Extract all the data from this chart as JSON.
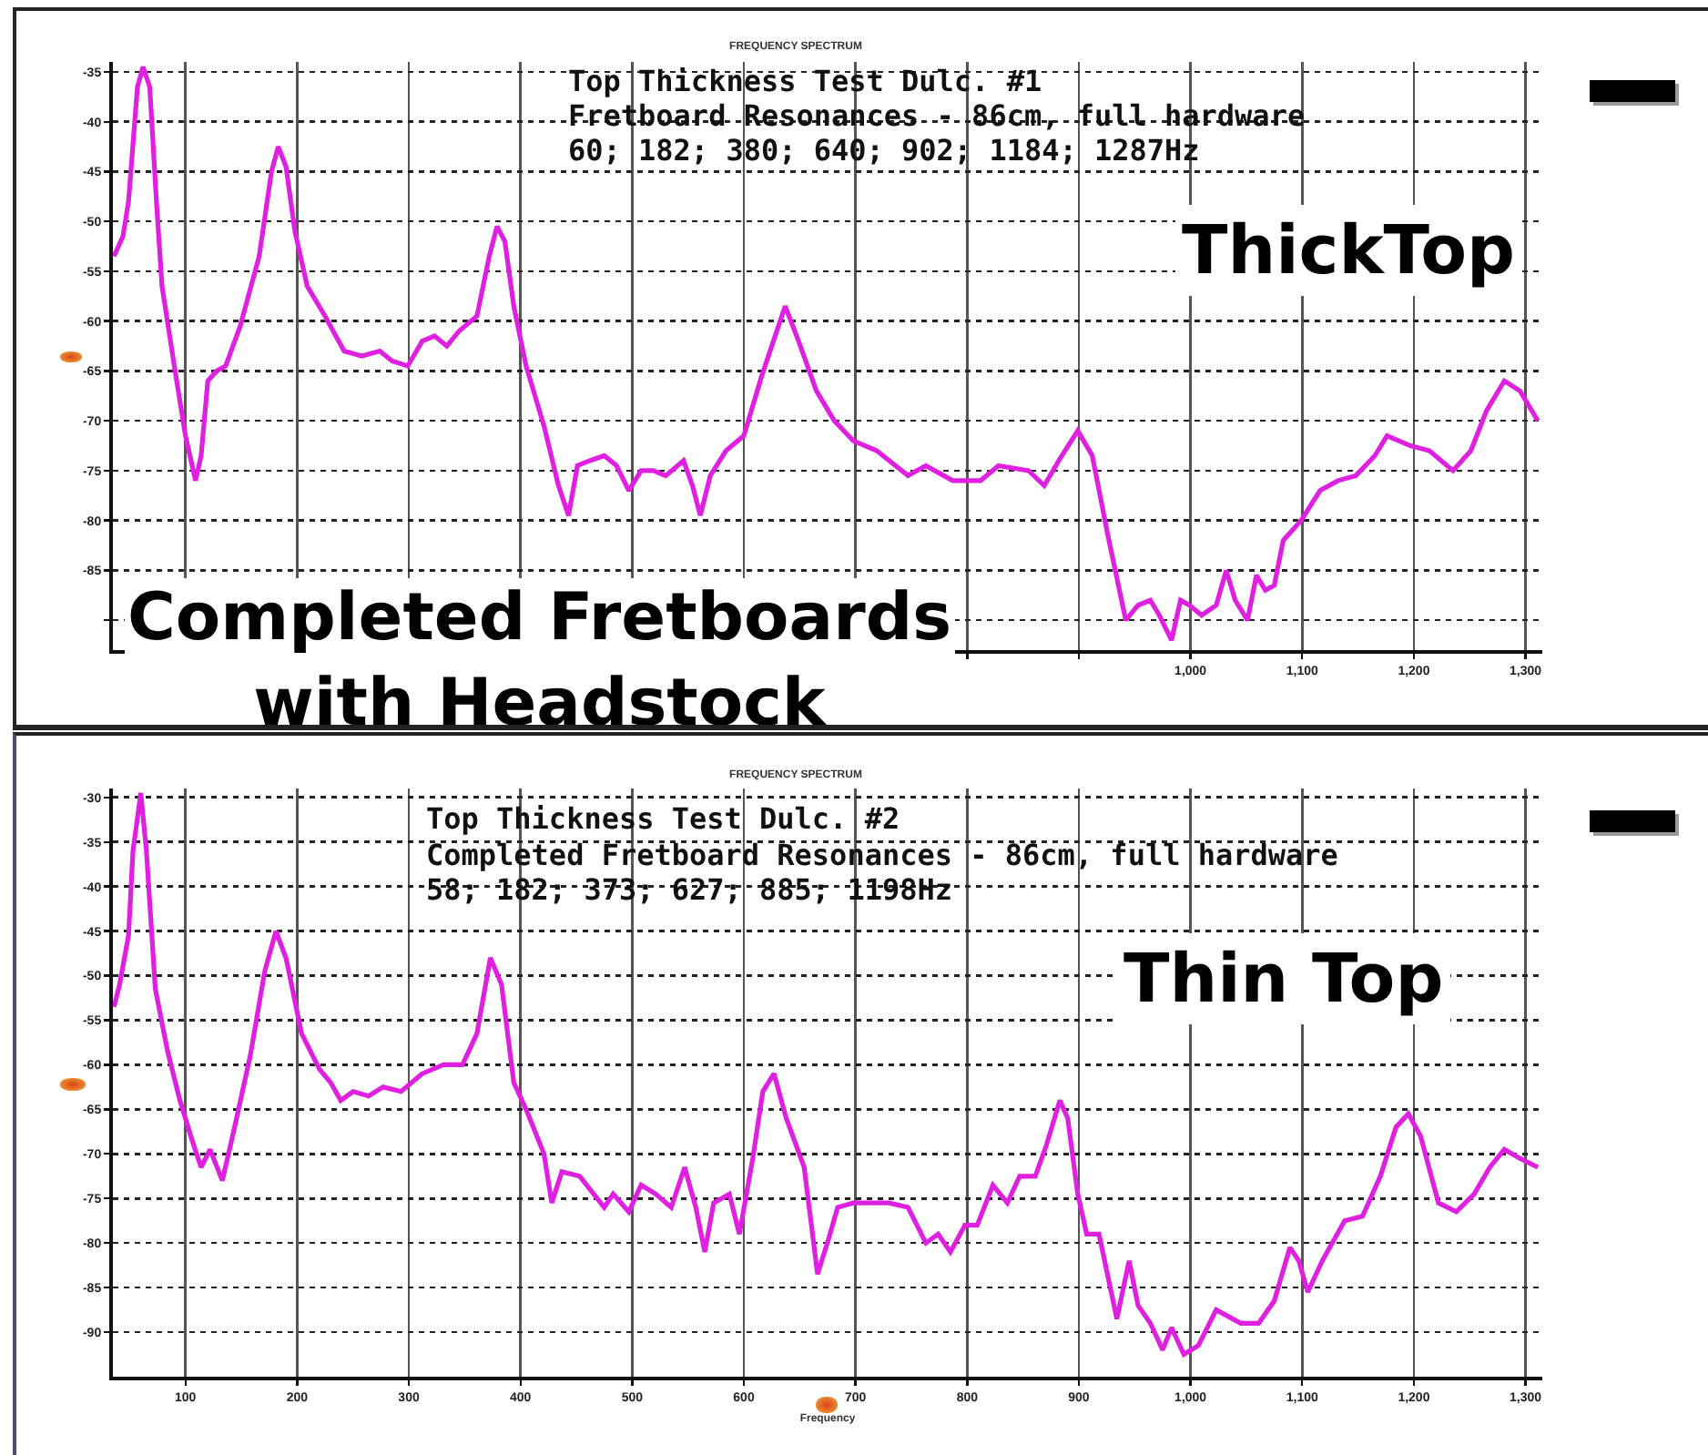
{
  "chart_data": [
    {
      "type": "line",
      "title": "FREQUENCY SPECTRUM",
      "x": [
        36,
        44,
        49,
        57,
        62,
        68,
        74,
        79,
        90,
        100,
        109,
        114,
        120,
        128,
        136,
        149,
        166,
        177,
        183,
        190,
        198,
        209,
        225,
        242,
        258,
        274,
        285,
        299,
        312,
        323,
        334,
        345,
        361,
        372,
        379,
        386,
        394,
        405,
        421,
        434,
        443,
        451,
        462,
        475,
        486,
        497,
        508,
        519,
        530,
        546,
        554,
        561,
        570,
        584,
        600,
        616,
        637,
        649,
        665,
        681,
        698,
        719,
        747,
        763,
        787,
        812,
        828,
        855,
        869,
        882,
        899,
        912,
        926,
        942,
        953,
        964,
        972,
        983,
        991,
        999,
        1010,
        1023,
        1032,
        1040,
        1051,
        1059,
        1067,
        1075,
        1083,
        1099,
        1116,
        1132,
        1148,
        1165,
        1176,
        1197,
        1214,
        1235,
        1251,
        1265,
        1281,
        1295,
        1311
      ],
      "series": [
        {
          "color": "#e020e0",
          "values": [
            -53.5,
            -51.5,
            -48,
            -36.5,
            -34.5,
            -36.5,
            -48,
            -56.5,
            -64.5,
            -71.5,
            -76,
            -73.5,
            -66,
            -65,
            -64.5,
            -60.5,
            -53.5,
            -45,
            -42.5,
            -44.5,
            -51,
            -56.5,
            -59.5,
            -63,
            -63.5,
            -63,
            -64,
            -64.5,
            -62,
            -61.5,
            -62.5,
            -61,
            -59.5,
            -53.5,
            -50.5,
            -52,
            -58.5,
            -64.5,
            -70.5,
            -76.5,
            -79.5,
            -74.5,
            -74,
            -73.5,
            -74.5,
            -77,
            -75,
            -75,
            -75.5,
            -74,
            -76.5,
            -79.5,
            -75.5,
            -73,
            -71.5,
            -65.5,
            -58.5,
            -62,
            -67,
            -70,
            -72,
            -73,
            -75.5,
            -74.5,
            -76,
            -76,
            -74.5,
            -75,
            -76.5,
            -74,
            -71,
            -73.5,
            -81.5,
            -90,
            -88.5,
            -88,
            -89.5,
            -92,
            -88,
            -88.5,
            -89.5,
            -88.5,
            -85,
            -88,
            -90,
            -85.5,
            -87,
            -86.5,
            -82,
            -80,
            -77,
            -76,
            -75.5,
            -73.5,
            -71.5,
            -72.5,
            -73,
            -75,
            -73,
            -69,
            -66,
            -67,
            -70
          ]
        }
      ],
      "xlim": [
        35,
        1315
      ],
      "xticks": [
        {
          "value": 100,
          "label": null
        },
        {
          "value": 200,
          "label": null
        },
        {
          "value": 300,
          "label": null
        },
        {
          "value": 400,
          "label": null
        },
        {
          "value": 500,
          "label": null
        },
        {
          "value": 600,
          "label": null
        },
        {
          "value": 700,
          "label": null
        },
        {
          "value": 800,
          "label": null
        },
        {
          "value": 900,
          "label": null
        },
        {
          "value": 1000,
          "label": "1,000"
        },
        {
          "value": 1100,
          "label": "1,100"
        },
        {
          "value": 1200,
          "label": "1,200"
        },
        {
          "value": 1300,
          "label": "1,300"
        }
      ],
      "ylim": [
        -93,
        -34
      ],
      "yticks": [
        -35,
        -40,
        -45,
        -50,
        -55,
        -60,
        -65,
        -70,
        -75,
        -80,
        -85,
        {
          "value": -90,
          "label": null
        }
      ],
      "grid": true,
      "annotations": [
        "Top Thickness Test Dulc. #1",
        "Fretboard Resonances - 86cm, full hardware",
        "60; 182; 380; 640; 902; 1184; 1287Hz",
        "ThickTop",
        "Completed Fretboards\nwith Headstock"
      ]
    },
    {
      "type": "line",
      "title": "FREQUENCY SPECTRUM",
      "xlabel": "Frequency",
      "x": [
        36,
        41,
        49,
        53,
        60,
        65,
        73,
        84,
        95,
        106,
        114,
        122,
        133,
        144,
        158,
        171,
        181,
        190,
        204,
        220,
        230,
        239,
        250,
        264,
        277,
        293,
        312,
        331,
        348,
        361,
        373,
        383,
        394,
        405,
        421,
        428,
        437,
        453,
        475,
        483,
        497,
        508,
        521,
        535,
        547,
        557,
        565,
        573,
        587,
        596,
        608,
        617,
        627,
        638,
        654,
        666,
        676,
        684,
        698,
        714,
        730,
        747,
        763,
        774,
        785,
        798,
        809,
        823,
        836,
        847,
        861,
        871,
        883,
        890,
        899,
        907,
        918,
        934,
        945,
        953,
        964,
        975,
        983,
        994,
        1007,
        1023,
        1045,
        1061,
        1075,
        1089,
        1097,
        1105,
        1118,
        1138,
        1154,
        1170,
        1184,
        1195,
        1206,
        1222,
        1238,
        1254,
        1268,
        1281,
        1295,
        1311
      ],
      "series": [
        {
          "color": "#e020e0",
          "values": [
            -53.5,
            -51,
            -45.5,
            -36,
            -29.5,
            -36,
            -51.5,
            -58.5,
            -64,
            -68.5,
            -71.5,
            -69.5,
            -73,
            -67,
            -59,
            -49.5,
            -45,
            -48,
            -56.5,
            -60.5,
            -62,
            -64,
            -63,
            -63.5,
            -62.5,
            -63,
            -61,
            -60,
            -60,
            -56.5,
            -48,
            -51,
            -62,
            -65,
            -70,
            -75.5,
            -72,
            -72.5,
            -76,
            -74.5,
            -76.5,
            -73.5,
            -74.5,
            -76,
            -71.5,
            -76,
            -81,
            -75.5,
            -74.5,
            -79,
            -70.5,
            -63,
            -61,
            -66,
            -71.5,
            -83.5,
            -79.5,
            -76,
            -75.5,
            -75.5,
            -75.5,
            -76,
            -80,
            -79,
            -81,
            -78,
            -78,
            -73.5,
            -75.5,
            -72.5,
            -72.5,
            -69,
            -64,
            -66,
            -74.5,
            -79,
            -79,
            -88.5,
            -82,
            -87,
            -89,
            -92,
            -89.5,
            -92.5,
            -91.5,
            -87.5,
            -89,
            -89,
            -86.5,
            -80.5,
            -82,
            -85.5,
            -82,
            -77.5,
            -77,
            -72.5,
            -67,
            -65.5,
            -68,
            -75.5,
            -76.5,
            -74.5,
            -71.5,
            -69.5,
            -70.5,
            -71.5
          ]
        }
      ],
      "xlim": [
        35,
        1315
      ],
      "xticks": [
        100,
        200,
        300,
        400,
        500,
        600,
        700,
        800,
        900,
        {
          "value": 1000,
          "label": "1,000"
        },
        {
          "value": 1100,
          "label": "1,100"
        },
        {
          "value": 1200,
          "label": "1,200"
        },
        {
          "value": 1300,
          "label": "1,300"
        }
      ],
      "ylim": [
        -95,
        -29
      ],
      "yticks": [
        -30,
        -35,
        -40,
        -45,
        -50,
        -55,
        -60,
        -65,
        -70,
        -75,
        -80,
        -85,
        -90
      ],
      "grid": true,
      "annotations": [
        "Top Thickness Test Dulc. #2",
        "Completed Fretboard Resonances - 86cm, full hardware",
        "58; 182; 373; 627; 885; 1198Hz",
        "Thin Top"
      ]
    }
  ]
}
